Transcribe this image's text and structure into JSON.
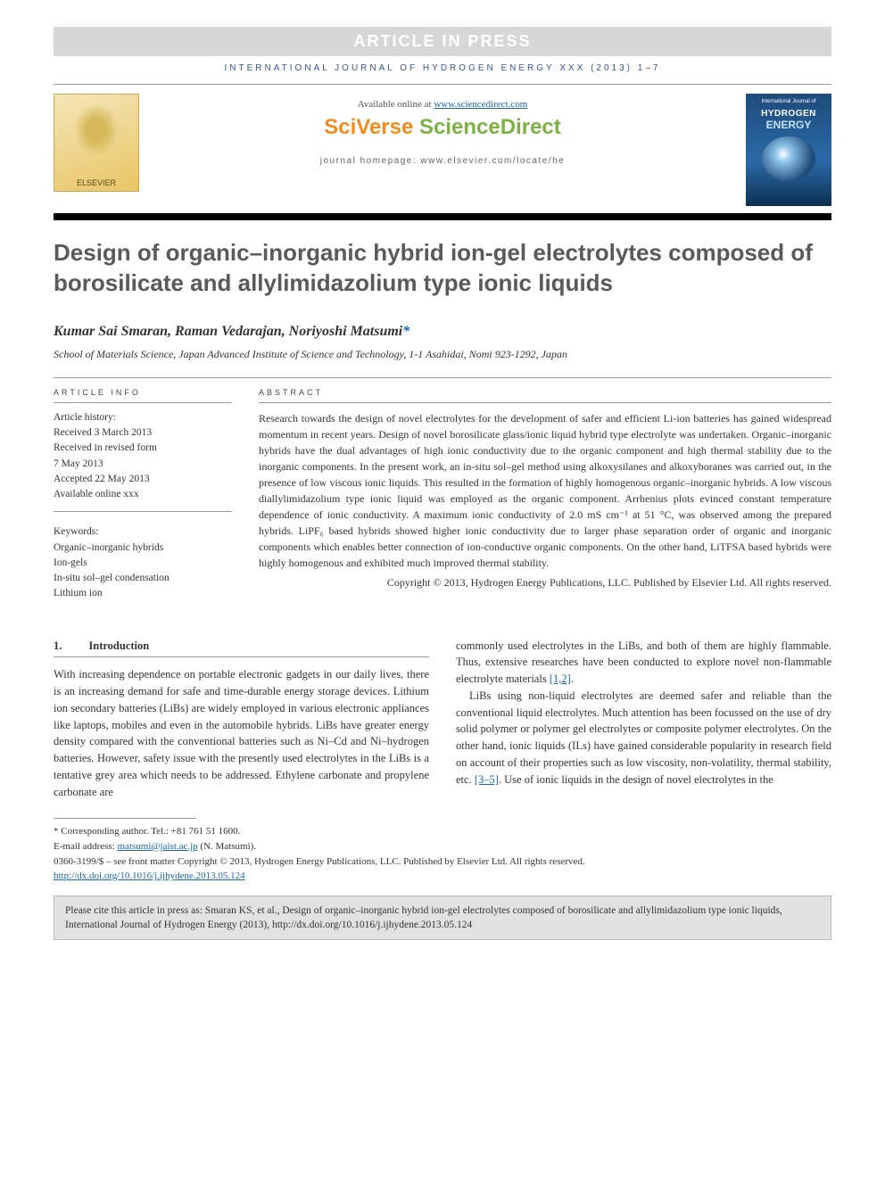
{
  "banner": "ARTICLE IN PRESS",
  "journalHeader": "INTERNATIONAL JOURNAL OF HYDROGEN ENERGY XXX (2013) 1–7",
  "header": {
    "availableText": "Available online at ",
    "availableLink": "www.sciencedirect.com",
    "sciverse1": "SciVerse ",
    "sciverse2": "ScienceDirect",
    "homepageLabel": "journal homepage: ",
    "homepageUrl": "www.elsevier.com/locate/he",
    "elsevierLabel": "ELSEVIER",
    "coverSmall": "International Journal of",
    "coverHydrogen": "HYDROGEN",
    "coverEnergy": "ENERGY"
  },
  "title": "Design of organic–inorganic hybrid ion-gel electrolytes composed of borosilicate and allylimidazolium type ionic liquids",
  "authors": "Kumar Sai Smaran, Raman Vedarajan, Noriyoshi Matsumi",
  "correspMark": "*",
  "affiliation": "School of Materials Science, Japan Advanced Institute of Science and Technology, 1-1 Asahidai, Nomi 923-1292, Japan",
  "info": {
    "labelInfo": "ARTICLE INFO",
    "historyLabel": "Article history:",
    "received": "Received 3 March 2013",
    "revised1": "Received in revised form",
    "revised2": "7 May 2013",
    "accepted": "Accepted 22 May 2013",
    "online": "Available online xxx",
    "keywordsLabel": "Keywords:",
    "kw1": "Organic–inorganic hybrids",
    "kw2": "Ion-gels",
    "kw3": "In-situ sol–gel condensation",
    "kw4": "Lithium ion"
  },
  "abstract": {
    "label": "ABSTRACT",
    "text": "Research towards the design of novel electrolytes for the development of safer and efficient Li-ion batteries has gained widespread momentum in recent years. Design of novel borosilicate glass/ionic liquid hybrid type electrolyte was undertaken. Organic–inorganic hybrids have the dual advantages of high ionic conductivity due to the organic component and high thermal stability due to the inorganic components. In the present work, an in-situ sol–gel method using alkoxysilanes and alkoxyboranes was carried out, in the presence of low viscous ionic liquids. This resulted in the formation of highly homogenous organic–inorganic hybrids. A low viscous diallylimidazolium type ionic liquid was employed as the organic component. Arrhenius plots evinced constant temperature dependence of ionic conductivity. A maximum ionic conductivity of 2.0 mS cm⁻¹ at 51 °C, was observed among the prepared hybrids. LiPF₆ based hybrids showed higher ionic conductivity due to larger phase separation order of organic and inorganic components which enables better connection of ion-conductive organic components. On the other hand, LiTFSA based hybrids were highly homogenous and exhibited much improved thermal stability.",
    "copyright": "Copyright © 2013, Hydrogen Energy Publications, LLC. Published by Elsevier Ltd. All rights reserved."
  },
  "intro": {
    "num": "1.",
    "heading": "Introduction",
    "p1": "With increasing dependence on portable electronic gadgets in our daily lives, there is an increasing demand for safe and time-durable energy storage devices. Lithium ion secondary batteries (LiBs) are widely employed in various electronic appliances like laptops, mobiles and even in the automobile hybrids. LiBs have greater energy density compared with the conventional batteries such as Ni–Cd and Ni–hydrogen batteries. However, safety issue with the presently used electrolytes in the LiBs is a tentative grey area which needs to be addressed. Ethylene carbonate and propylene carbonate are",
    "p2a": "commonly used electrolytes in the LiBs, and both of them are highly flammable. Thus, extensive researches have been conducted to explore novel non-flammable electrolyte materials ",
    "p2ref": "[1,2]",
    "p2b": ".",
    "p3a": "LiBs using non-liquid electrolytes are deemed safer and reliable than the conventional liquid electrolytes. Much attention has been focussed on the use of dry solid polymer or polymer gel electrolytes or composite polymer electrolytes. On the other hand, ionic liquids (ILs) have gained considerable popularity in research field on account of their properties such as low viscosity, non-volatility, thermal stability, etc. ",
    "p3ref": "[3–5]",
    "p3b": ". Use of ionic liquids in the design of novel electrolytes in the"
  },
  "footnotes": {
    "corresp": "* Corresponding author. Tel.: +81 761 51 1600.",
    "emailLabel": "E-mail address: ",
    "email": "matsumi@jaist.ac.jp",
    "emailName": " (N. Matsumi).",
    "copyright": "0360-3199/$ – see front matter Copyright © 2013, Hydrogen Energy Publications, LLC. Published by Elsevier Ltd. All rights reserved.",
    "doi": "http://dx.doi.org/10.1016/j.ijhydene.2013.05.124"
  },
  "citeBox": "Please cite this article in press as: Smaran KS, et al., Design of organic–inorganic hybrid ion-gel electrolytes composed of borosilicate and allylimidazolium type ionic liquids, International Journal of Hydrogen Energy (2013), http://dx.doi.org/10.1016/j.ijhydene.2013.05.124",
  "colors": {
    "bannerBg": "#d7d7d7",
    "headerBlue": "#37598e",
    "link": "#1768b3",
    "orange": "#f28b1e",
    "green": "#7bb241",
    "titleGray": "#5a5a5a"
  }
}
